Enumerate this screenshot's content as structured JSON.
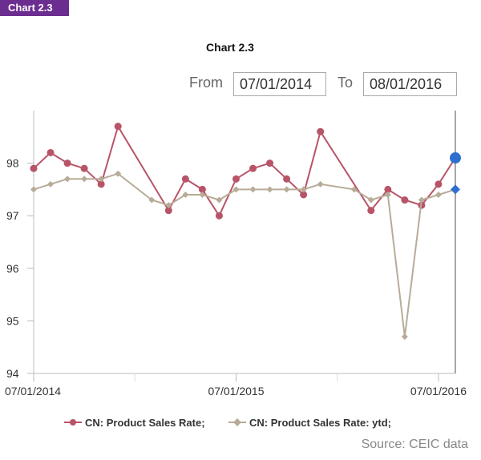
{
  "badge": {
    "label": "Chart 2.3"
  },
  "header": {
    "title": "Chart 2.3"
  },
  "range": {
    "from_label": "From",
    "from_value": "07/01/2014",
    "to_label": "To",
    "to_value": "08/01/2016"
  },
  "source": "Source: CEIC data",
  "colors": {
    "rate": "#b85468",
    "ytd": "#b8ac98",
    "rate_end": "#2f6fd0",
    "ytd_end": "#2f6fd0",
    "badge": "#6b2d8f"
  },
  "chart_data": {
    "type": "line",
    "title": "Chart 2.3",
    "xlabel": "",
    "ylabel": "",
    "ylim": [
      94,
      99
    ],
    "yticks": [
      94,
      95,
      96,
      97,
      98
    ],
    "xticks": [
      "07/01/2014",
      "07/01/2015",
      "07/01/2016"
    ],
    "grid": false,
    "legend_position": "bottom",
    "categories": [
      "07/01/2014",
      "08/01/2014",
      "09/01/2014",
      "10/01/2014",
      "11/01/2014",
      "12/01/2014",
      "01/01/2015",
      "02/01/2015",
      "03/01/2015",
      "04/01/2015",
      "05/01/2015",
      "06/01/2015",
      "07/01/2015",
      "08/01/2015",
      "09/01/2015",
      "10/01/2015",
      "11/01/2015",
      "12/01/2015",
      "01/01/2016",
      "02/01/2016",
      "03/01/2016",
      "04/01/2016",
      "05/01/2016",
      "06/01/2016",
      "07/01/2016",
      "08/01/2016"
    ],
    "series": [
      {
        "name": "CN: Product Sales Rate",
        "values": [
          97.9,
          98.2,
          98.0,
          97.9,
          97.6,
          98.7,
          null,
          null,
          97.1,
          97.7,
          97.5,
          97.0,
          97.7,
          97.9,
          98.0,
          97.7,
          97.4,
          98.6,
          null,
          null,
          97.1,
          97.5,
          97.3,
          97.2,
          97.6,
          98.1
        ]
      },
      {
        "name": "CN: Product Sales Rate: ytd",
        "values": [
          97.5,
          97.6,
          97.7,
          97.7,
          97.7,
          97.8,
          null,
          97.3,
          97.2,
          97.4,
          97.4,
          97.3,
          97.5,
          97.5,
          97.5,
          97.5,
          97.5,
          97.6,
          null,
          97.5,
          97.3,
          97.4,
          94.7,
          97.3,
          97.4,
          97.5
        ]
      }
    ]
  },
  "legend": [
    {
      "label": "CN: Product Sales Rate;"
    },
    {
      "label": "CN: Product Sales Rate: ytd;"
    }
  ]
}
